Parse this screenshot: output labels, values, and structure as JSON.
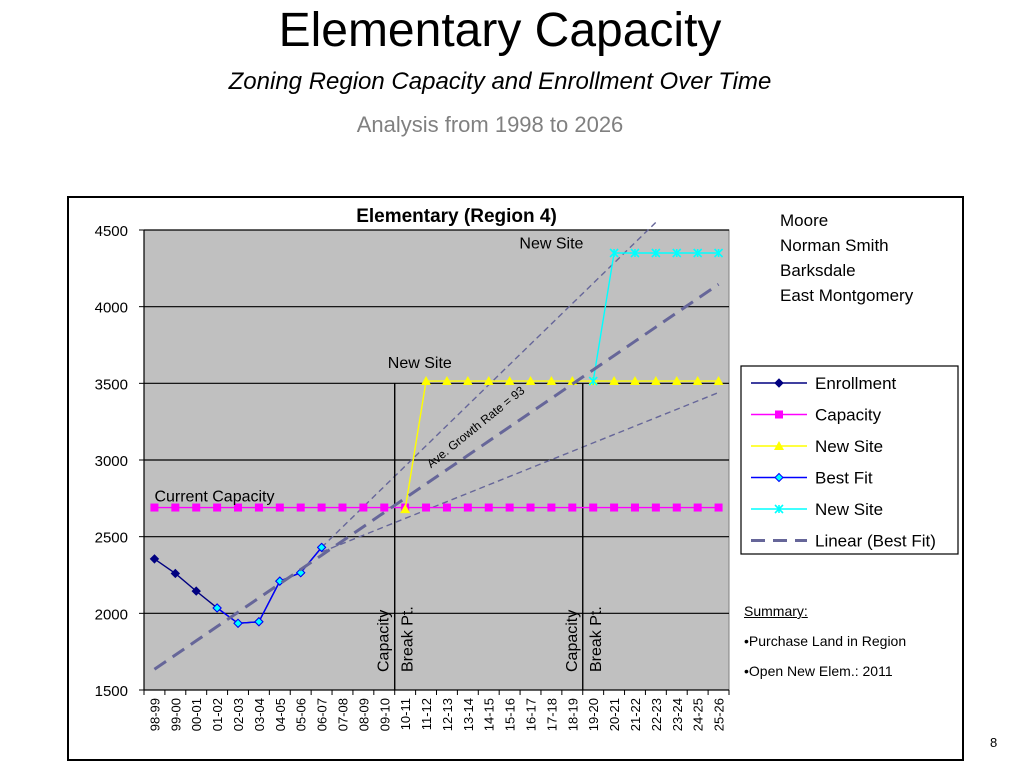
{
  "slide": {
    "title": "Elementary Capacity",
    "subtitle": "Zoning Region Capacity and Enrollment Over Time",
    "analysis": "Analysis from 1998 to 2026",
    "page_number": "8"
  },
  "schools": [
    "Moore",
    "Norman Smith",
    "Barksdale",
    "East Montgomery"
  ],
  "summary": {
    "title": "Summary:",
    "items": [
      "•Purchase Land in Region",
      "•Open New Elem.: 2011"
    ]
  },
  "chart_data": {
    "type": "line",
    "title": "Elementary (Region 4)",
    "xlabel": "",
    "ylabel": "",
    "ylim": [
      1500,
      4500
    ],
    "yticks": [
      1500,
      2000,
      2500,
      3000,
      3500,
      4000,
      4500
    ],
    "grid": true,
    "plot_background": "#c0c0c0",
    "legend_position": "right",
    "categories": [
      "98-99",
      "99-00",
      "00-01",
      "01-02",
      "02-03",
      "03-04",
      "04-05",
      "05-06",
      "06-07",
      "07-08",
      "08-09",
      "09-10",
      "10-11",
      "11-12",
      "12-13",
      "13-14",
      "14-15",
      "15-16",
      "16-17",
      "17-18",
      "18-19",
      "19-20",
      "20-21",
      "21-22",
      "22-23",
      "23-24",
      "24-25",
      "25-26"
    ],
    "series": [
      {
        "name": "Enrollment",
        "color": "#000080",
        "marker": "diamond",
        "values": [
          2355,
          2260,
          2145,
          2035,
          1935,
          1945,
          2210,
          2265,
          2430,
          null,
          null,
          null,
          null,
          null,
          null,
          null,
          null,
          null,
          null,
          null,
          null,
          null,
          null,
          null,
          null,
          null,
          null,
          null
        ]
      },
      {
        "name": "Capacity",
        "color": "#ff00ff",
        "marker": "square",
        "values": [
          2690,
          2690,
          2690,
          2690,
          2690,
          2690,
          2690,
          2690,
          2690,
          2690,
          2690,
          2690,
          2690,
          2690,
          2690,
          2690,
          2690,
          2690,
          2690,
          2690,
          2690,
          2690,
          2690,
          2690,
          2690,
          2690,
          2690,
          2690
        ]
      },
      {
        "name": "New Site",
        "color": "#ffff00",
        "marker": "triangle",
        "values": [
          null,
          null,
          null,
          null,
          null,
          null,
          null,
          null,
          null,
          null,
          null,
          null,
          2680,
          3515,
          3515,
          3515,
          3515,
          3515,
          3515,
          3515,
          3515,
          3515,
          3515,
          3515,
          3515,
          3515,
          3515,
          3515
        ]
      },
      {
        "name": "Best Fit",
        "color": "#0000ff",
        "marker": "circle",
        "values": [
          null,
          null,
          null,
          2035,
          1935,
          1945,
          2210,
          2265,
          2430,
          null,
          null,
          null,
          null,
          null,
          null,
          null,
          null,
          null,
          null,
          null,
          null,
          null,
          null,
          null,
          null,
          null,
          null,
          null
        ]
      },
      {
        "name": "New Site",
        "color": "#00ffff",
        "marker": "star",
        "values": [
          null,
          null,
          null,
          null,
          null,
          null,
          null,
          null,
          null,
          null,
          null,
          null,
          null,
          null,
          null,
          null,
          null,
          null,
          null,
          null,
          null,
          3515,
          4350,
          4350,
          4350,
          4350,
          4350,
          4350
        ]
      },
      {
        "name": "Linear (Best Fit)",
        "color": "#666699",
        "dash": true,
        "values": [
          1635,
          1728,
          1821,
          1914,
          2007,
          2100,
          2193,
          2286,
          2379,
          2472,
          2565,
          2658,
          2751,
          2844,
          2937,
          3030,
          3123,
          3216,
          3309,
          3402,
          3495,
          3588,
          3681,
          3774,
          3867,
          3960,
          4053,
          4146
        ]
      }
    ],
    "extra_lines": [
      {
        "from_index": 8,
        "from_value": 2430,
        "to_index": 24,
        "to_value": 4550
      },
      {
        "from_index": 8,
        "from_value": 2400,
        "to_index": 27,
        "to_value": 3440
      }
    ],
    "vertical_markers": [
      {
        "index": 11.5,
        "label_lines": [
          "Capacity",
          "Break Pt."
        ]
      },
      {
        "index": 20.5,
        "label_lines": [
          "Capacity",
          "Break Pt."
        ]
      }
    ],
    "annotations": [
      {
        "text": "New Site",
        "index": 19,
        "value": 4380
      },
      {
        "text": "New Site",
        "index": 12.7,
        "value": 3600
      },
      {
        "text": "Current Capacity",
        "index": 0,
        "value": 2730
      },
      {
        "text": "Ave. Growth Rate = 93",
        "index": 15.5,
        "value": 3195,
        "rotate": -39
      }
    ]
  }
}
